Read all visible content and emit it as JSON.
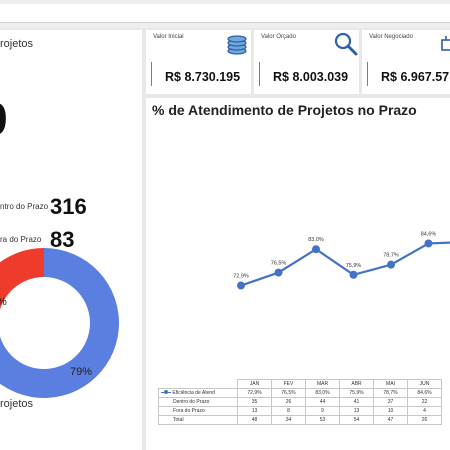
{
  "left_panel": {
    "title": "rojetos",
    "total": "9",
    "within_label": "ntro do Prazo",
    "within_value": "316",
    "outside_label": "ra do Prazo",
    "outside_value": "83",
    "donut_label_within": "79%",
    "donut_label_outside": "%",
    "bottom_label": "rojetos",
    "donut_within_fraction": 0.79,
    "colors": {
      "within": "#5b7fe0",
      "outside": "#ef3b2c"
    }
  },
  "cards": [
    {
      "label": "Valor Inicial",
      "value": "R$ 8.730.195",
      "icon": "coins-icon"
    },
    {
      "label": "Valor Orçado",
      "value": "R$ 8.003.039",
      "icon": "magnifier-icon"
    },
    {
      "label": "Valor Negociado",
      "value": "R$ 6.967.57",
      "icon": "cart-icon"
    }
  ],
  "chart_data": {
    "type": "line",
    "title": "% de Atendimento de Projetos no Prazo",
    "categories": [
      "JAN",
      "FEV",
      "MAR",
      "ABR",
      "MAI",
      "JUN"
    ],
    "series": [
      {
        "name": "Eficiência de Atend",
        "values": [
          72.9,
          76.5,
          83.0,
          75.9,
          78.7,
          84.6
        ],
        "labels": [
          "72,9%",
          "76,5%",
          "83,0%",
          "75,9%",
          "78,7%",
          "84,6%"
        ],
        "color": "#4472c4"
      }
    ],
    "ylim": [
      60,
      100
    ]
  },
  "table": {
    "headers": [
      "JAN",
      "FEV",
      "MAR",
      "ABR",
      "MAI",
      "JUN"
    ],
    "rows": [
      {
        "label": "Eficiência de Atend",
        "cells": [
          "72,9%",
          "76,5%",
          "83,0%",
          "75,9%",
          "78,7%",
          "84,6%"
        ]
      },
      {
        "label": "Dentro do Prazo",
        "cells": [
          "35",
          "26",
          "44",
          "41",
          "37",
          "22"
        ]
      },
      {
        "label": "Fora do Prazo",
        "cells": [
          "13",
          "8",
          "9",
          "13",
          "10",
          "4"
        ]
      },
      {
        "label": "Total",
        "cells": [
          "48",
          "34",
          "53",
          "54",
          "47",
          "26"
        ]
      }
    ]
  }
}
